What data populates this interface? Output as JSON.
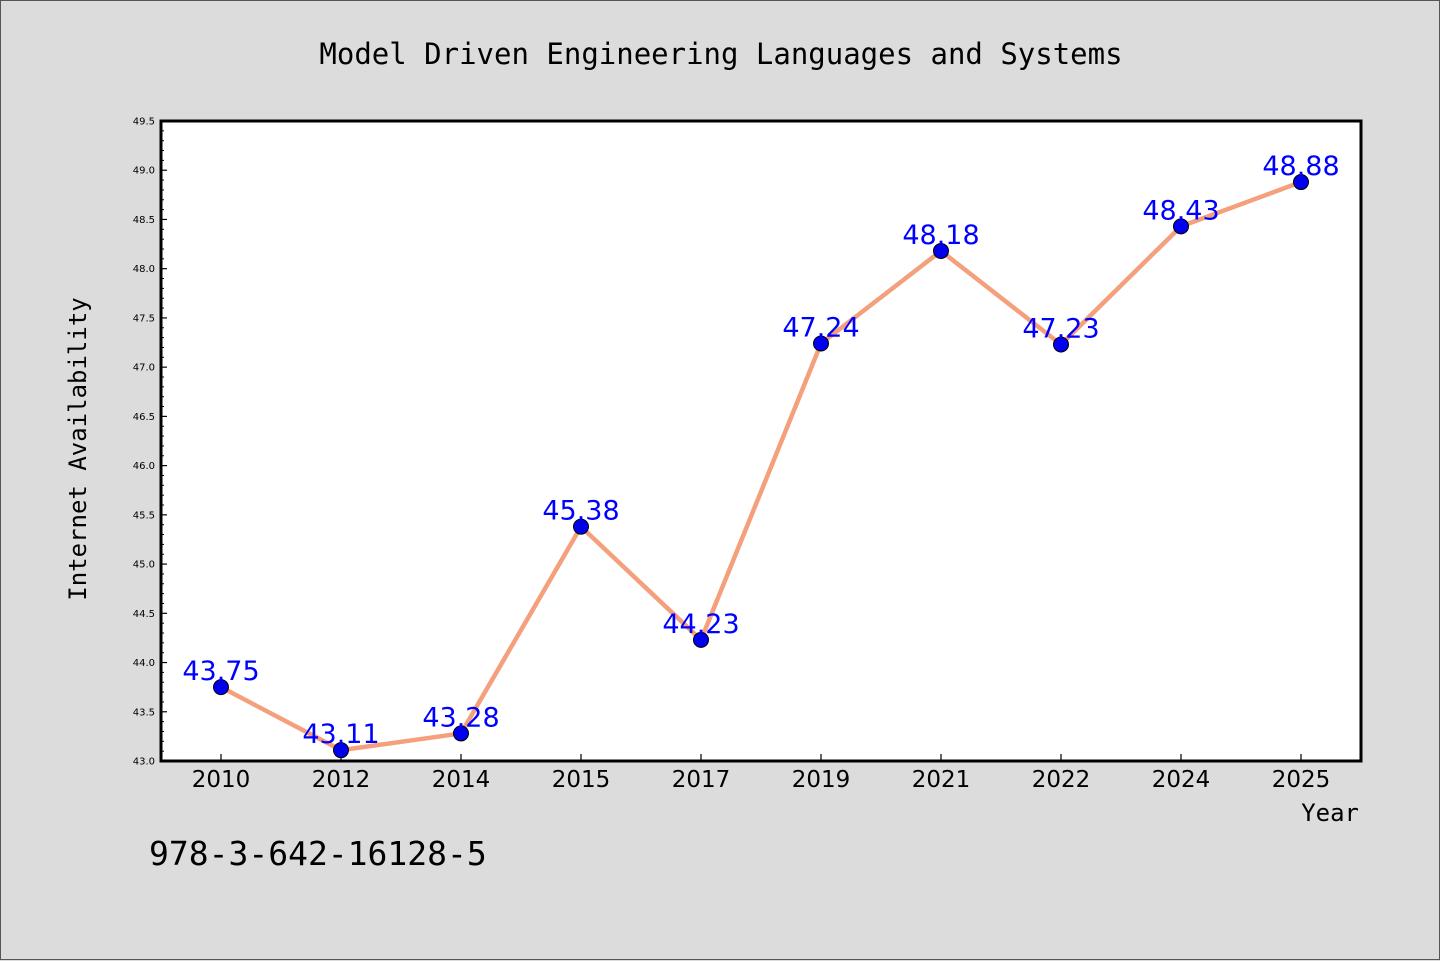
{
  "chart_data": {
    "type": "line",
    "title": "Model Driven Engineering Languages and Systems",
    "xlabel": "Year",
    "ylabel": "Internet Availability",
    "categories": [
      "2010",
      "2012",
      "2014",
      "2015",
      "2017",
      "2019",
      "2021",
      "2022",
      "2024",
      "2025"
    ],
    "series": [
      {
        "values": [
          43.75,
          43.11,
          43.28,
          45.38,
          44.23,
          47.24,
          48.18,
          47.23,
          48.43,
          48.88
        ],
        "data_labels": [
          "43.75",
          "43.11",
          "43.28",
          "45.38",
          "44.23",
          "47.24",
          "48.18",
          "47.23",
          "48.43",
          "48.88"
        ]
      }
    ],
    "ylim": [
      43.0,
      49.5
    ],
    "yticks": [
      "43.0",
      "43.5",
      "44.0",
      "44.5",
      "45.0",
      "45.5",
      "46.0",
      "46.5",
      "47.0",
      "47.5",
      "48.0",
      "48.5",
      "49.0",
      "49.5"
    ],
    "grid": false,
    "legend": "none",
    "colors": {
      "line": "#f4a07c",
      "marker": "#0000ee",
      "label": "#0000ff",
      "background": "#dcdcdc",
      "plot_background": "#ffffff"
    }
  },
  "annotation": "978-3-642-16128-5"
}
